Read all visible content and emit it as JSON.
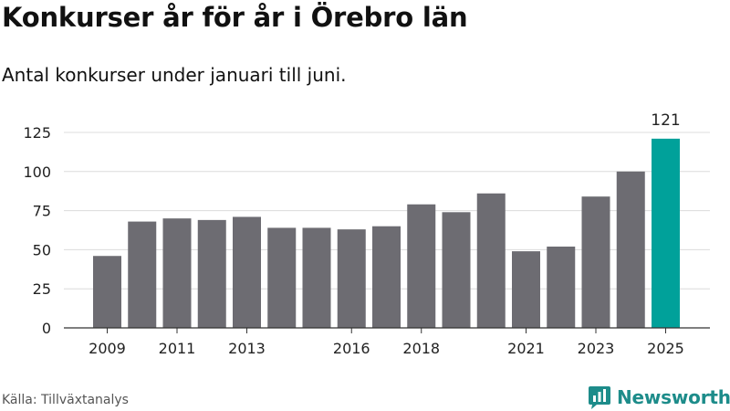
{
  "title": "Konkurser år för år i Örebro län",
  "subtitle": "Antal konkurser under januari till juni.",
  "source": "Källa: Tillväxtanalys",
  "brand": {
    "name": "Newsworthy",
    "icon": "bar-chart-logo-icon"
  },
  "colors": {
    "bar": "#6d6c72",
    "highlight": "#00a19a",
    "grid": "#dcdcdc",
    "axis": "#333333"
  },
  "chart_data": {
    "type": "bar",
    "categories": [
      "2009",
      "2010",
      "2011",
      "2012",
      "2013",
      "2014",
      "2015",
      "2016",
      "2017",
      "2018",
      "2019",
      "2020",
      "2021",
      "2022",
      "2023",
      "2024",
      "2025"
    ],
    "values": [
      46,
      68,
      70,
      69,
      71,
      64,
      64,
      63,
      65,
      79,
      74,
      86,
      49,
      52,
      84,
      100,
      121
    ],
    "x_tick_labels": [
      "2009",
      "2011",
      "2013",
      "2016",
      "2018",
      "2021",
      "2023",
      "2025"
    ],
    "y_ticks": [
      0,
      25,
      50,
      75,
      100,
      125
    ],
    "ylim": [
      0,
      125
    ],
    "highlight_category": "2025",
    "highlight_label": "121",
    "grid": "horizontal",
    "legend": "none"
  }
}
